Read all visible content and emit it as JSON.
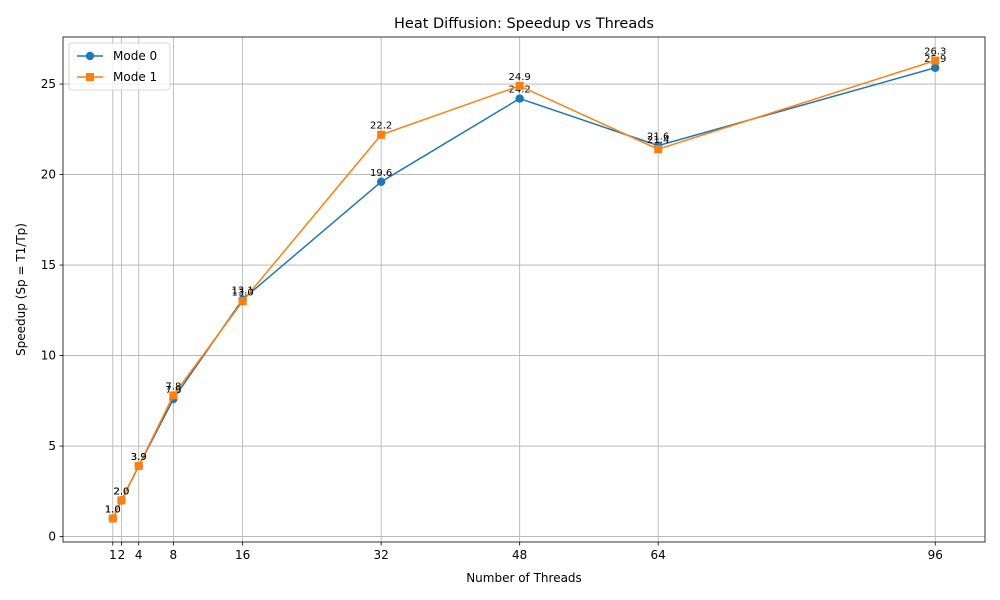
{
  "chart_data": {
    "type": "line",
    "title": "Heat Diffusion: Speedup vs Threads",
    "xlabel": "Number of Threads",
    "ylabel": "Speedup (Sp = T1/Tp)",
    "x": [
      1,
      2,
      4,
      8,
      16,
      32,
      48,
      64,
      96
    ],
    "x_ticks": [
      1,
      2,
      4,
      8,
      16,
      32,
      48,
      64,
      96
    ],
    "x_tick_labels": [
      "1",
      "2",
      "4",
      "8",
      "16",
      "32",
      "48",
      "64",
      "96"
    ],
    "xlim": [
      -4.75,
      101.75
    ],
    "y_ticks": [
      0,
      5,
      10,
      15,
      20,
      25
    ],
    "y_tick_labels": [
      "0",
      "5",
      "10",
      "15",
      "20",
      "25"
    ],
    "ylim": [
      -0.3,
      27.6
    ],
    "grid": true,
    "legend_position": "top-left",
    "series": [
      {
        "name": "Mode 0",
        "color": "#1f77b4",
        "marker": "circle",
        "values": [
          1.0,
          2.0,
          3.9,
          7.6,
          13.1,
          19.6,
          24.2,
          21.6,
          25.9
        ],
        "labels": [
          "1.0",
          "2.0",
          "3.9",
          "7.6",
          "13.1",
          "19.6",
          "24.2",
          "21.6",
          "25.9"
        ]
      },
      {
        "name": "Mode 1",
        "color": "#ff7f0e",
        "marker": "square",
        "values": [
          1.0,
          2.0,
          3.9,
          7.8,
          13.0,
          22.2,
          24.9,
          21.4,
          26.3
        ],
        "labels": [
          "1.0",
          "2.0",
          "3.9",
          "7.8",
          "13.0",
          "22.2",
          "24.9",
          "21.4",
          "26.3"
        ]
      }
    ]
  }
}
